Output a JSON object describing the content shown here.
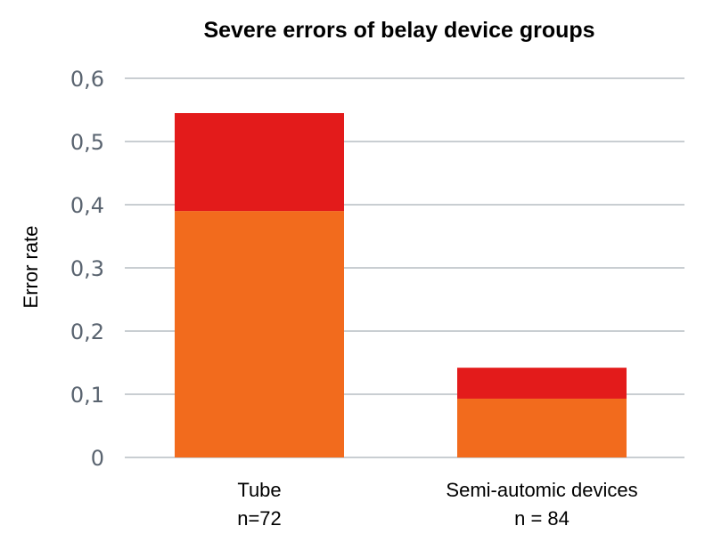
{
  "chart_data": {
    "type": "bar",
    "stacked": true,
    "title": "Severe errors of belay device groups",
    "xlabel": "",
    "ylabel": "Error rate",
    "ylim": [
      0,
      0.6
    ],
    "yticks": [
      0,
      0.1,
      0.2,
      0.3,
      0.4,
      0.5,
      0.6
    ],
    "ytick_labels": [
      "0",
      "0,1",
      "0,2",
      "0,3",
      "0,4",
      "0,5",
      "0,6"
    ],
    "grid": true,
    "categories": [
      {
        "name": "Tube",
        "sub": "n=72"
      },
      {
        "name": "Semi-automic devices",
        "sub": "n = 84"
      }
    ],
    "series": [
      {
        "color": "#f26b1d",
        "values": [
          0.39,
          0.093
        ]
      },
      {
        "color": "#e31b1b",
        "values": [
          0.155,
          0.049
        ]
      }
    ]
  }
}
